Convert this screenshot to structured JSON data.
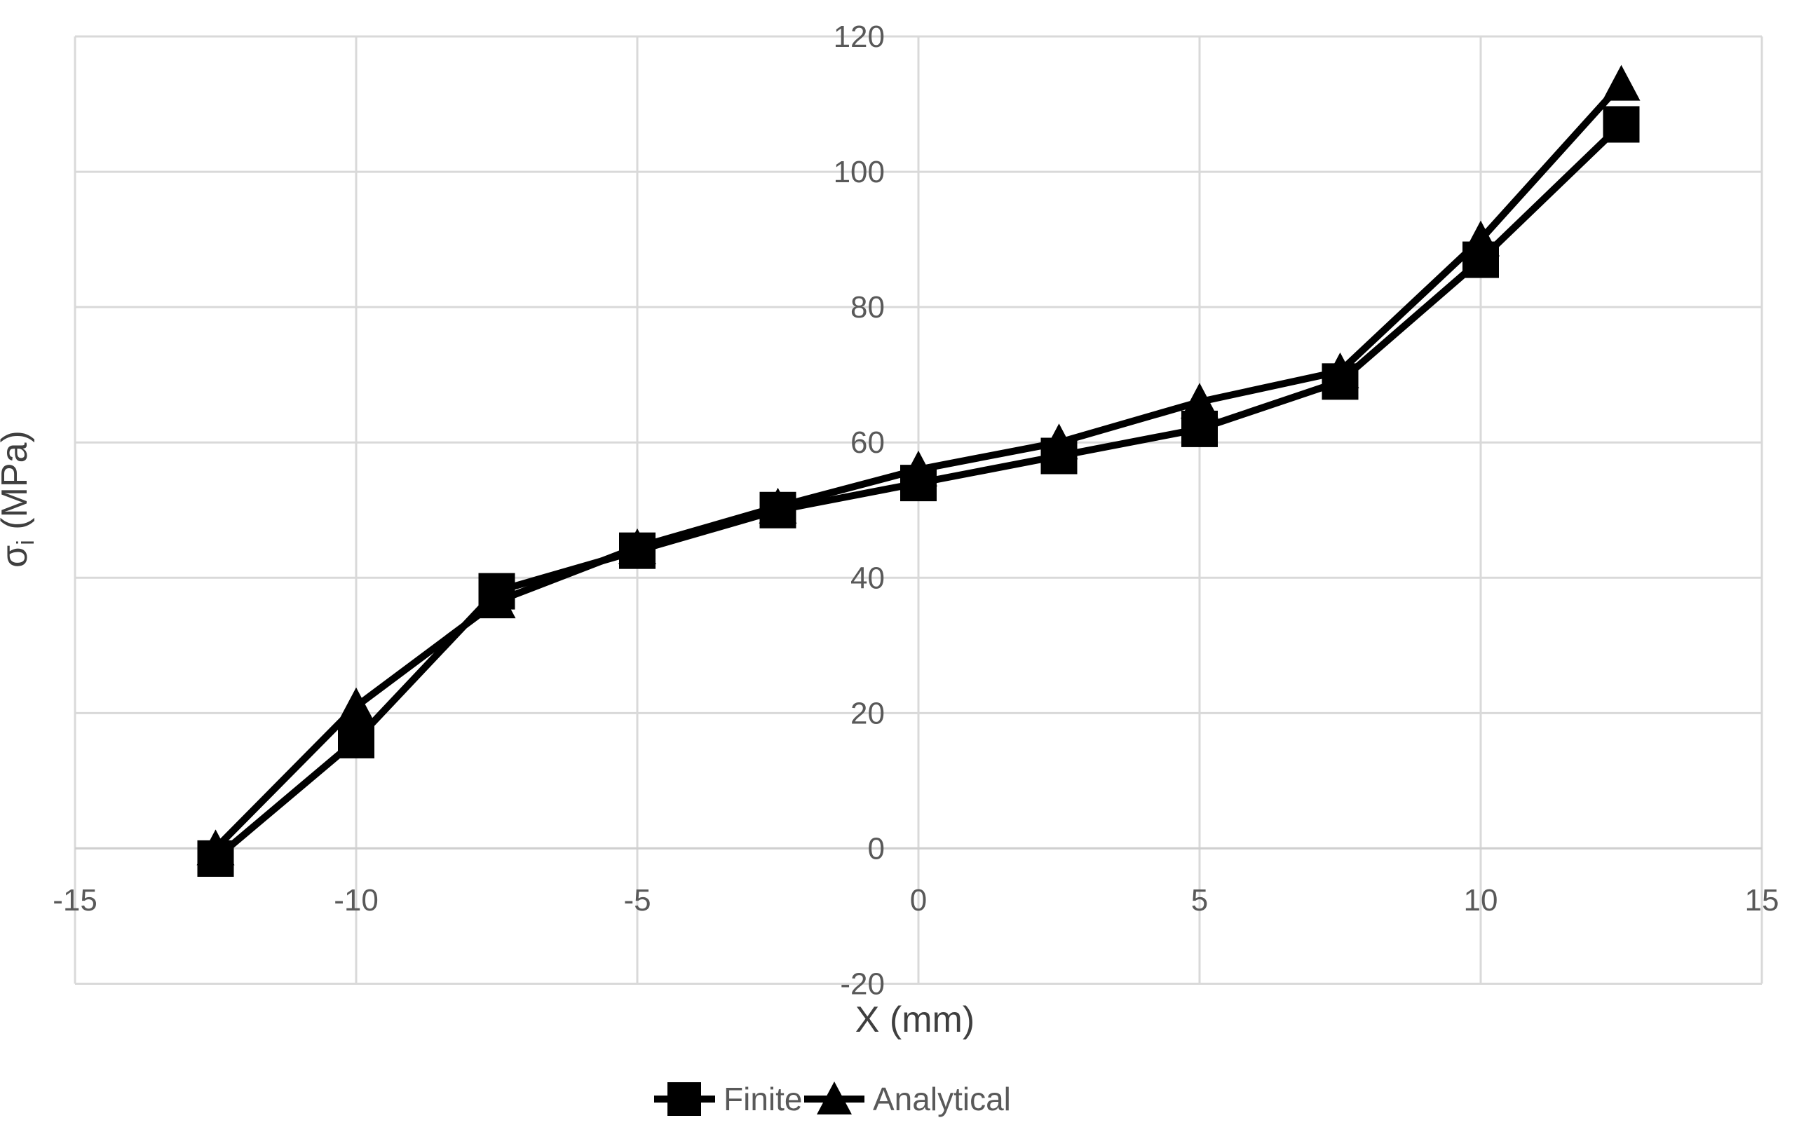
{
  "chart_data": {
    "type": "line",
    "title": "",
    "xlabel": "X (mm)",
    "ylabel_sigma": "σ",
    "ylabel_sub": "i",
    "ylabel_unit": " (MPa)",
    "x": [
      -12.5,
      -10,
      -7.5,
      -5,
      -2.5,
      0,
      2.5,
      5,
      7.5,
      10,
      12.5
    ],
    "series": [
      {
        "name": "Finite",
        "marker": "square",
        "values": [
          -1.5,
          16,
          38,
          44,
          50,
          54,
          58,
          62,
          69,
          87,
          107
        ]
      },
      {
        "name": "Analytical",
        "marker": "triangle",
        "values": [
          0,
          21,
          36.5,
          44.5,
          50.5,
          56,
          60,
          66,
          70.5,
          90,
          113
        ]
      }
    ],
    "xlim": [
      -15,
      15
    ],
    "ylim": [
      -20,
      120
    ],
    "xticks": [
      -15,
      -10,
      -5,
      0,
      5,
      10,
      15
    ],
    "yticks": [
      120,
      100,
      80,
      60,
      40,
      20,
      0,
      -20
    ],
    "grid": true,
    "legend_position": "bottom",
    "colors": {
      "series": "#000000",
      "grid": "#d9d9d9",
      "axis_line": "#cfcfcf",
      "tick_text": "#595959",
      "title_text": "#3f3f3f"
    }
  }
}
